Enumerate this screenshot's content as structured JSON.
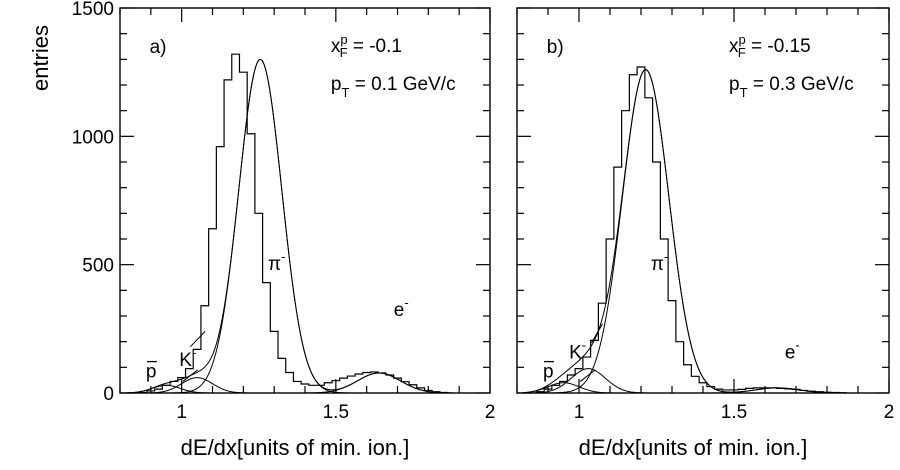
{
  "chart_data": [
    {
      "type": "line",
      "panel_label": "a)",
      "kinematics": {
        "xf_symbol": "x",
        "xf_sup": "p",
        "xf_sub": "F",
        "xf_value": " = -0.1",
        "pt_symbol": "p",
        "pt_sub": "T",
        "pt_value": " = 0.1 GeV/c"
      },
      "xlabel": "dE/dx[units of min. ion.]",
      "ylabel": "entries",
      "xlim": [
        0.8,
        2.0
      ],
      "ylim": [
        0,
        1500
      ],
      "x_ticks": [
        "1",
        "1.5",
        "2"
      ],
      "y_ticks": [
        "0",
        "500",
        "1000",
        "1500"
      ],
      "histogram": {
        "bin_width": 0.025,
        "x": [
          0.875,
          0.9,
          0.925,
          0.95,
          0.975,
          1.0,
          1.025,
          1.05,
          1.075,
          1.1,
          1.125,
          1.15,
          1.175,
          1.2,
          1.225,
          1.25,
          1.275,
          1.3,
          1.325,
          1.35,
          1.375,
          1.4,
          1.425,
          1.45,
          1.475,
          1.5,
          1.525,
          1.55,
          1.575,
          1.6,
          1.625,
          1.65,
          1.675,
          1.7,
          1.725,
          1.75,
          1.775,
          1.8,
          1.825,
          1.85
        ],
        "values": [
          2,
          8,
          15,
          30,
          45,
          60,
          95,
          170,
          340,
          640,
          960,
          1220,
          1320,
          1250,
          1010,
          700,
          430,
          240,
          135,
          80,
          45,
          35,
          30,
          30,
          40,
          48,
          58,
          66,
          74,
          80,
          82,
          78,
          70,
          58,
          44,
          32,
          20,
          10,
          5,
          2
        ]
      },
      "fit_components": [
        {
          "name": "p̅",
          "label": "p",
          "overbar": true,
          "amplitude": 30,
          "mean": 0.95,
          "sigma": 0.045
        },
        {
          "name": "K⁻",
          "label": "K",
          "sup": "-",
          "amplitude": 60,
          "mean": 1.05,
          "sigma": 0.05
        },
        {
          "name": "π⁻",
          "label": "π",
          "sup": "-",
          "amplitude": 1300,
          "mean": 1.255,
          "sigma": 0.07
        },
        {
          "name": "e⁻",
          "label": "e",
          "sup": "-",
          "amplitude": 78,
          "mean": 1.64,
          "sigma": 0.07
        }
      ]
    },
    {
      "type": "line",
      "panel_label": "b)",
      "kinematics": {
        "xf_symbol": "x",
        "xf_sup": "p",
        "xf_sub": "F",
        "xf_value": " = -0.15",
        "pt_symbol": "p",
        "pt_sub": "T",
        "pt_value": " = 0.3 GeV/c"
      },
      "xlabel": "dE/dx[units of min. ion.]",
      "ylabel": "",
      "xlim": [
        0.8,
        2.0
      ],
      "ylim": [
        0,
        1500
      ],
      "x_ticks": [
        "1",
        "1.5",
        "2"
      ],
      "y_ticks": [],
      "histogram": {
        "bin_width": 0.025,
        "x": [
          0.875,
          0.9,
          0.925,
          0.95,
          0.975,
          1.0,
          1.025,
          1.05,
          1.075,
          1.1,
          1.125,
          1.15,
          1.175,
          1.2,
          1.225,
          1.25,
          1.275,
          1.3,
          1.325,
          1.35,
          1.375,
          1.4,
          1.425,
          1.45,
          1.475,
          1.5,
          1.525,
          1.55,
          1.575,
          1.6,
          1.625,
          1.65,
          1.675,
          1.7,
          1.725,
          1.75,
          1.775,
          1.8,
          1.825,
          1.85
        ],
        "values": [
          5,
          15,
          30,
          45,
          70,
          95,
          140,
          205,
          350,
          600,
          880,
          1100,
          1240,
          1270,
          1150,
          900,
          600,
          360,
          200,
          110,
          65,
          40,
          25,
          15,
          12,
          12,
          14,
          18,
          20,
          20,
          20,
          18,
          16,
          14,
          10,
          7,
          5,
          3,
          2,
          1
        ]
      },
      "fit_components": [
        {
          "name": "p̅",
          "label": "p",
          "overbar": true,
          "amplitude": 40,
          "mean": 0.95,
          "sigma": 0.05
        },
        {
          "name": "K⁻",
          "label": "K",
          "sup": "-",
          "amplitude": 95,
          "mean": 1.03,
          "sigma": 0.055
        },
        {
          "name": "π⁻",
          "label": "π",
          "sup": "-",
          "amplitude": 1260,
          "mean": 1.215,
          "sigma": 0.075
        },
        {
          "name": "e⁻",
          "label": "e",
          "sup": "-",
          "amplitude": 20,
          "mean": 1.64,
          "sigma": 0.07
        }
      ]
    }
  ]
}
